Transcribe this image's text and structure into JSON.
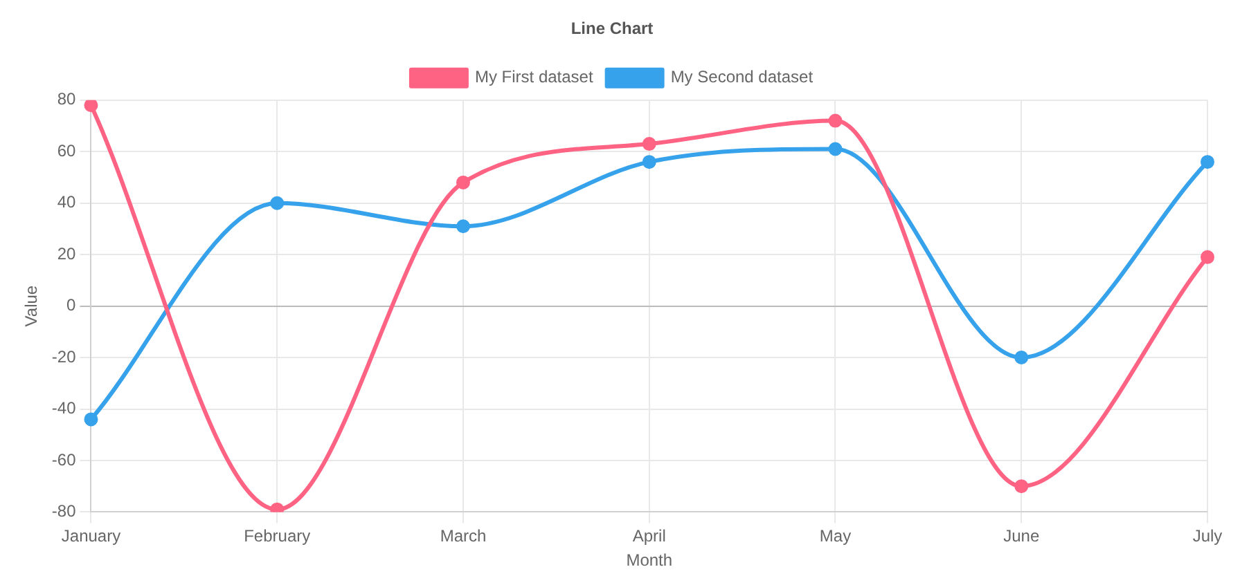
{
  "chart_data": {
    "type": "line",
    "title": "Line Chart",
    "xlabel": "Month",
    "ylabel": "Value",
    "categories": [
      "January",
      "February",
      "March",
      "April",
      "May",
      "June",
      "July"
    ],
    "series": [
      {
        "name": "My First dataset",
        "color": "#ff6384",
        "values": [
          78,
          -79,
          48,
          63,
          72,
          -70,
          19
        ]
      },
      {
        "name": "My Second dataset",
        "color": "#36a2eb",
        "values": [
          -44,
          40,
          31,
          56,
          61,
          -20,
          56
        ]
      }
    ],
    "ylim": [
      -80,
      80
    ],
    "yticks": [
      -80,
      -60,
      -40,
      -20,
      0,
      20,
      40,
      60,
      80
    ],
    "grid": true,
    "legend": "top",
    "marker": "circle",
    "line_style": "solid"
  }
}
